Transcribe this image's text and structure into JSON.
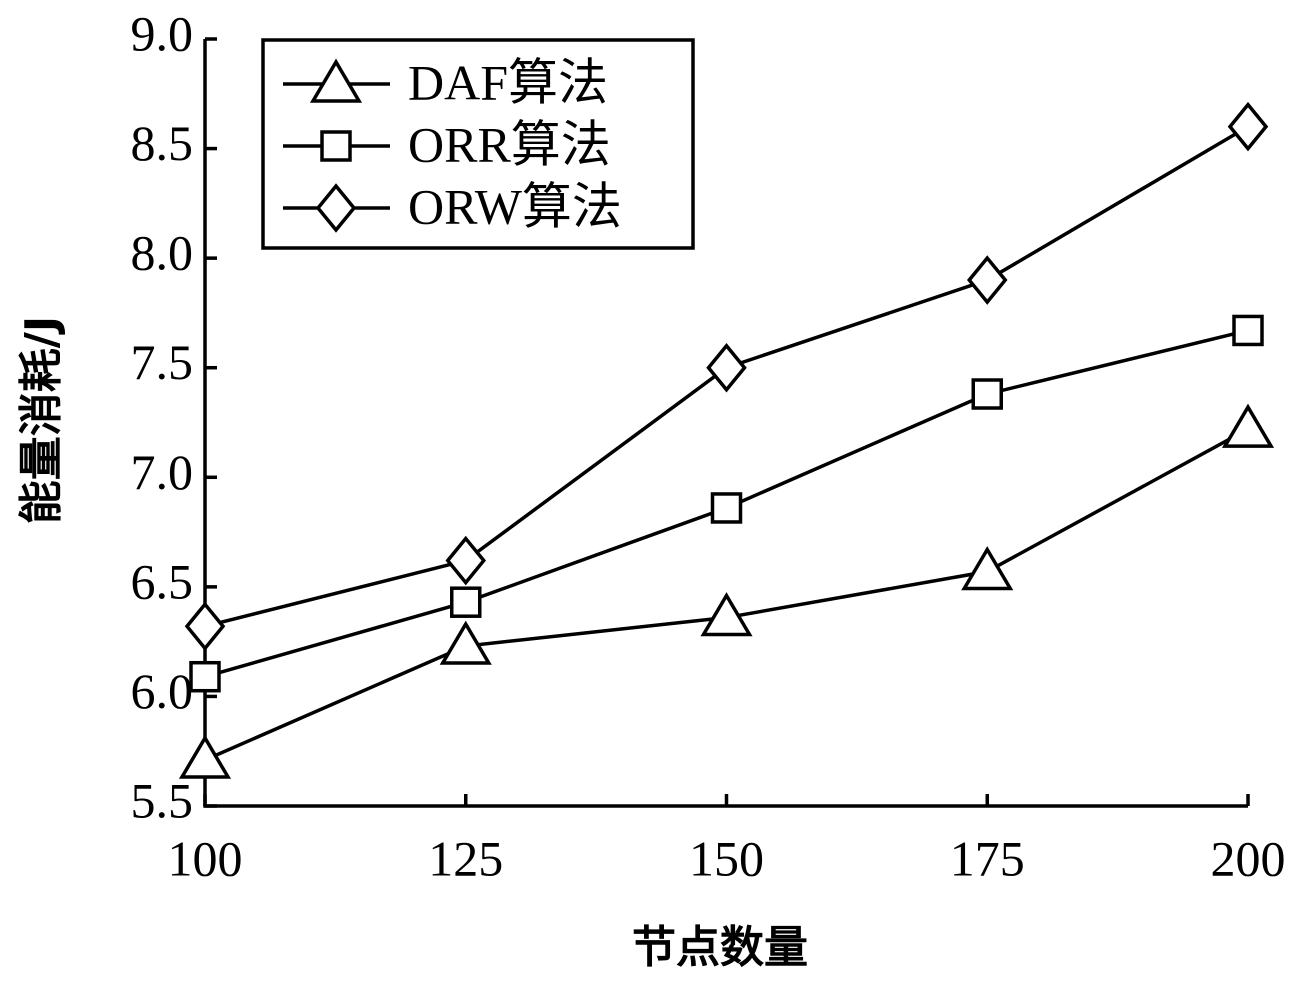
{
  "chart_data": {
    "type": "line",
    "x_label": "节点数量",
    "y_label": "能量消耗/J",
    "x": [
      100,
      125,
      150,
      175,
      200
    ],
    "xlim": [
      100,
      200
    ],
    "xticks": [
      100,
      125,
      150,
      175,
      200
    ],
    "ylim": [
      5.5,
      9.0
    ],
    "yticks": [
      5.5,
      {
        "value": 6,
        "label": "6.0"
      },
      6.5,
      {
        "value": 7,
        "label": "7.0"
      },
      7.5,
      {
        "value": 8,
        "label": "8.0"
      },
      8.5,
      {
        "value": 9,
        "label": "9.0"
      }
    ],
    "grid": false,
    "legend": "upper left",
    "series": [
      {
        "name": "DAF算法",
        "color": "#000000",
        "marker": "triangle",
        "values": [
          5.71,
          6.23,
          6.36,
          6.57,
          7.22
        ]
      },
      {
        "name": "ORR算法",
        "color": "#000000",
        "marker": "square",
        "values": [
          6.09,
          6.43,
          6.86,
          7.38,
          7.67
        ]
      },
      {
        "name": "ORW算法",
        "color": "#000000",
        "marker": "diamond",
        "values": [
          6.32,
          6.62,
          7.5,
          7.9,
          8.6
        ]
      }
    ]
  }
}
